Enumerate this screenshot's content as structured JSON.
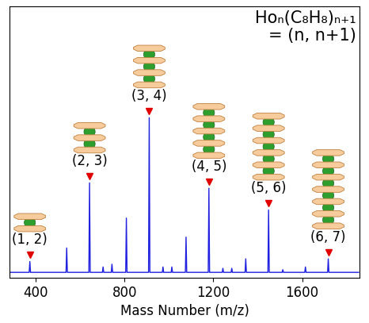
{
  "chart_data": {
    "type": "line",
    "title": "Hoₙ(C₈H₈)ₙ₊₁\n= (n, n+1)",
    "x_label": "Mass Number (m/z)",
    "x": [
      285,
      370,
      373,
      376,
      536,
      539,
      542,
      639,
      642,
      645,
      700,
      703,
      706,
      740,
      743,
      746,
      805,
      808,
      811,
      908,
      911,
      914,
      970,
      973,
      976,
      1010,
      1013,
      1016,
      1074,
      1077,
      1080,
      1177,
      1180,
      1183,
      1240,
      1243,
      1246,
      1280,
      1283,
      1286,
      1343,
      1346,
      1349,
      1446,
      1449,
      1452,
      1510,
      1513,
      1516,
      1612,
      1615,
      1618,
      1715,
      1718,
      1721,
      1855
    ],
    "values": [
      2,
      2,
      6,
      2,
      2,
      11,
      2,
      2,
      35,
      2,
      2,
      4,
      2,
      2,
      5,
      2,
      2,
      22,
      2,
      2,
      59,
      2,
      2,
      4,
      2,
      2,
      4,
      2,
      2,
      15,
      2,
      2,
      33,
      2,
      2,
      3.5,
      2,
      2,
      3.5,
      2,
      2,
      7,
      2,
      2,
      25,
      2,
      2,
      3,
      2,
      2,
      4,
      2,
      2,
      7,
      2,
      2
    ],
    "color": "#2020e0",
    "marker_color": "#e00000",
    "annotations": [
      {
        "text": "(1, 2)",
        "x": 373,
        "n": 1
      },
      {
        "text": "(2, 3)",
        "x": 642,
        "n": 2
      },
      {
        "text": "(3, 4)",
        "x": 911,
        "n": 3
      },
      {
        "text": "(4, 5)",
        "x": 1180,
        "n": 4
      },
      {
        "text": "(5, 6)",
        "x": 1449,
        "n": 5
      },
      {
        "text": "(6, 7)",
        "x": 1718,
        "n": 6
      }
    ],
    "xlim": [
      280,
      1860
    ],
    "xticks": [
      400,
      800,
      1200,
      1600
    ],
    "ylim": [
      0,
      100
    ],
    "yticks": [],
    "tick_labels": "x",
    "grid": false
  }
}
